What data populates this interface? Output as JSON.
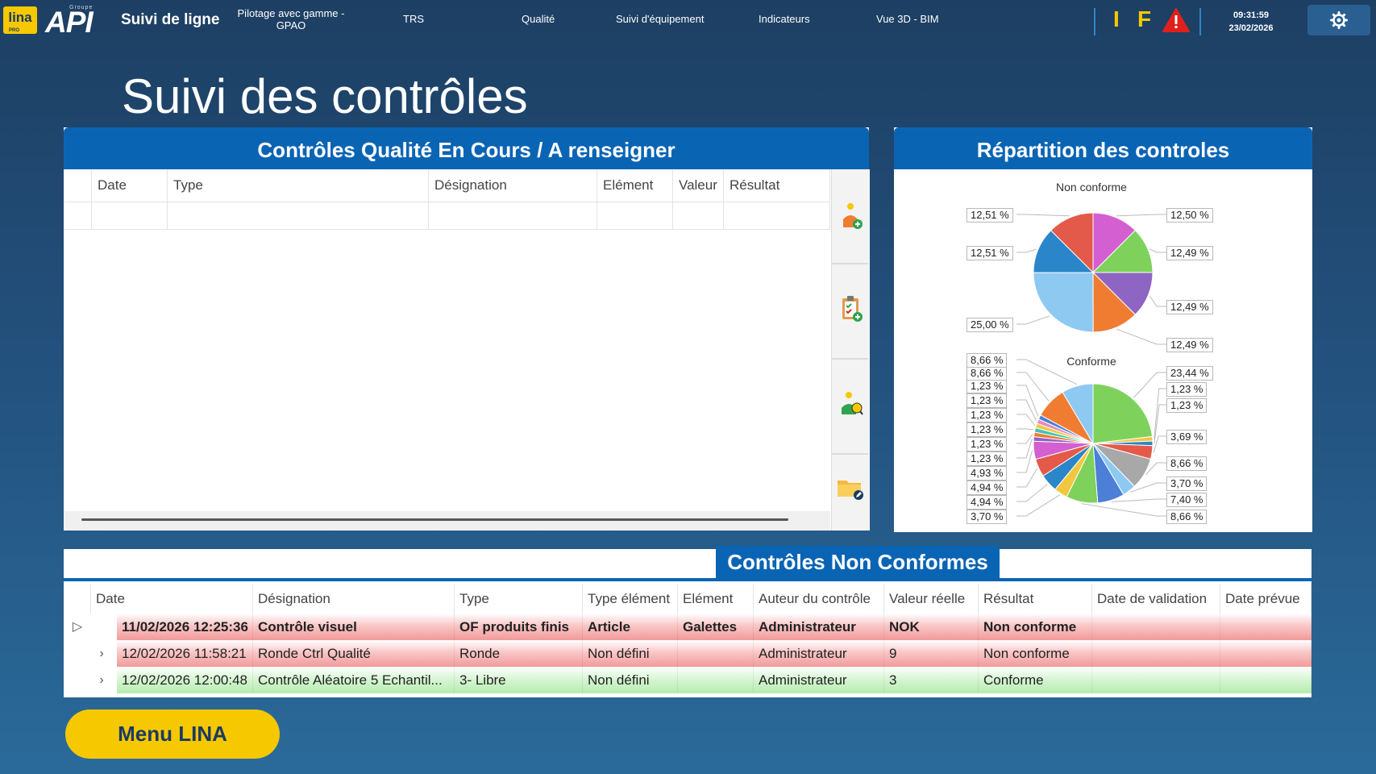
{
  "header": {
    "logo_lina": "lina",
    "logo_lina_sub": "PRO",
    "logo_api_groupe": "Groupe",
    "logo_api": "API",
    "app_title": "Suivi de ligne",
    "nav": [
      {
        "label": "Pilotage avec gamme -",
        "label2": "GPAO"
      },
      {
        "label": "TRS"
      },
      {
        "label": "Qualité"
      },
      {
        "label": "Suivi d'équipement"
      },
      {
        "label": "Indicateurs"
      },
      {
        "label": "Vue 3D - BIM"
      }
    ],
    "indicator_i": "I",
    "indicator_f": "F",
    "time": "09:31:59",
    "date": "23/02/2026",
    "icons": {
      "warning": "warning-triangle-icon",
      "settings": "gear-icon"
    },
    "colors": {
      "accent_yellow": "#f6c800",
      "warning_red": "#e0201b"
    }
  },
  "page": {
    "title": "Suivi des contrôles"
  },
  "in_progress": {
    "title": "Contrôles Qualité En Cours / A renseigner",
    "columns": [
      "Date",
      "Type",
      "Désignation",
      "Elément",
      "Valeur",
      "Résultat"
    ],
    "rows": [],
    "tools": [
      {
        "name": "add-control-icon"
      },
      {
        "name": "add-clipboard-icon"
      },
      {
        "name": "validate-control-icon"
      },
      {
        "name": "edit-folder-icon"
      }
    ]
  },
  "distribution": {
    "title": "Répartition des controles",
    "chart_data": [
      {
        "type": "pie",
        "title": "Non conforme",
        "slices": [
          {
            "value": 12.5,
            "label": "12,50 %",
            "color": "#d35fd0"
          },
          {
            "value": 12.49,
            "label": "12,49 %",
            "color": "#7ed25c"
          },
          {
            "value": 12.49,
            "label": "12,49 %",
            "color": "#8e65c2"
          },
          {
            "value": 12.49,
            "label": "12,49 %",
            "color": "#f07c32"
          },
          {
            "value": 25.0,
            "label": "25,00 %",
            "color": "#8ec9f2"
          },
          {
            "value": 12.51,
            "label": "12,51 %",
            "color": "#2a86c8"
          },
          {
            "value": 12.51,
            "label": "12,51 %",
            "color": "#e45a4a"
          }
        ]
      },
      {
        "type": "pie",
        "title": "Conforme",
        "slices": [
          {
            "value": 23.44,
            "label": "23,44 %",
            "color": "#7ed25c"
          },
          {
            "value": 1.23,
            "label": "1,23 %",
            "color": "#f2c740"
          },
          {
            "value": 1.23,
            "label": "1,23 %",
            "color": "#2a86c8"
          },
          {
            "value": 3.69,
            "label": "3,69 %",
            "color": "#e45a4a"
          },
          {
            "value": 8.66,
            "label": "8,66 %",
            "color": "#a8a8a8"
          },
          {
            "value": 3.7,
            "label": "3,70 %",
            "color": "#8ec9f2"
          },
          {
            "value": 7.4,
            "label": "7,40 %",
            "color": "#4d7fd6"
          },
          {
            "value": 8.66,
            "label": "8,66 %",
            "color": "#7ed25c"
          },
          {
            "value": 3.7,
            "label": "3,70 %",
            "color": "#f2c740"
          },
          {
            "value": 4.94,
            "label": "4,94 %",
            "color": "#2a86c8"
          },
          {
            "value": 4.94,
            "label": "4,94 %",
            "color": "#e45a4a"
          },
          {
            "value": 4.93,
            "label": "4,93 %",
            "color": "#d35fd0"
          },
          {
            "value": 1.23,
            "label": "1,23 %",
            "color": "#8e65c2"
          },
          {
            "value": 1.23,
            "label": "1,23 %",
            "color": "#f07c32"
          },
          {
            "value": 1.23,
            "label": "1,23 %",
            "color": "#3fc5b5"
          },
          {
            "value": 1.23,
            "label": "1,23 %",
            "color": "#f2c740"
          },
          {
            "value": 1.23,
            "label": "1,23 %",
            "color": "#e48cbf"
          },
          {
            "value": 1.23,
            "label": "1,23 %",
            "color": "#4d7fd6"
          },
          {
            "value": 8.66,
            "label": "8,66 %",
            "color": "#f07c32"
          },
          {
            "value": 8.66,
            "label": "8,66 %",
            "color": "#8ec9f2"
          }
        ]
      }
    ]
  },
  "non_conform": {
    "title": "Contrôles Non Conformes",
    "columns": [
      "Date",
      "Désignation",
      "Type",
      "Type élément",
      "Elément",
      "Auteur du contrôle",
      "Valeur réelle",
      "Résultat",
      "Date de validation",
      "Date prévue"
    ],
    "rows": [
      {
        "cells": [
          "11/02/2026 12:25:36",
          "Contrôle visuel",
          "OF produits finis",
          "Article",
          "Galettes",
          "Administrateur",
          "NOK",
          "Non conforme",
          "",
          ""
        ],
        "status": "red",
        "bold": true,
        "expander": "▷"
      },
      {
        "cells": [
          "12/02/2026 11:58:21",
          "Ronde Ctrl Qualité",
          "Ronde",
          "Non défini",
          "",
          "Administrateur",
          "9",
          "Non conforme",
          "",
          ""
        ],
        "status": "red",
        "bold": false,
        "expander": "›"
      },
      {
        "cells": [
          "12/02/2026 12:00:48",
          "Contrôle Aléatoire 5 Echantil...",
          "3- Libre",
          "Non défini",
          "",
          "Administrateur",
          "3",
          "Conforme",
          "",
          ""
        ],
        "status": "green",
        "bold": false,
        "expander": "›"
      }
    ]
  },
  "footer": {
    "menu_button": "Menu LINA"
  }
}
